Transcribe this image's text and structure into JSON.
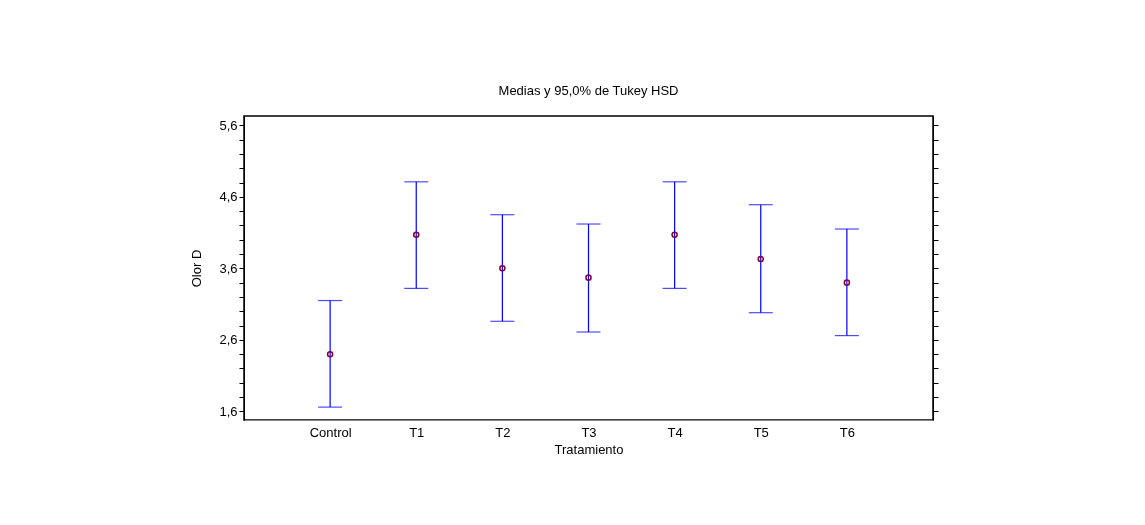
{
  "chart_data": {
    "type": "scatter",
    "title": "Medias y 95,0% de Tukey HSD",
    "xlabel": "Tratamiento",
    "ylabel": "Olor D",
    "categories": [
      "Control",
      "T1",
      "T2",
      "T3",
      "T4",
      "T5",
      "T6"
    ],
    "series": [
      {
        "color": "#800040",
        "values": [
          2.4,
          4.07,
          3.6,
          3.47,
          4.07,
          3.73,
          3.4
        ],
        "errors": [
          [
            1.66,
            3.15
          ],
          [
            3.32,
            4.81
          ],
          [
            2.86,
            4.35
          ],
          [
            2.71,
            4.22
          ],
          [
            3.32,
            4.81
          ],
          [
            2.98,
            4.49
          ],
          [
            2.66,
            4.15
          ]
        ]
      }
    ],
    "ylim": [
      1.48,
      5.73
    ],
    "yticks": [
      {
        "value": 1.6,
        "label": "1,6"
      },
      {
        "value": 1.8,
        "label": null
      },
      {
        "value": 2.0,
        "label": null
      },
      {
        "value": 2.2,
        "label": null
      },
      {
        "value": 2.4,
        "label": null
      },
      {
        "value": 2.6,
        "label": "2,6"
      },
      {
        "value": 2.8,
        "label": null
      },
      {
        "value": 3.0,
        "label": null
      },
      {
        "value": 3.2,
        "label": null
      },
      {
        "value": 3.4,
        "label": null
      },
      {
        "value": 3.6,
        "label": "3,6"
      },
      {
        "value": 3.8,
        "label": null
      },
      {
        "value": 4.0,
        "label": null
      },
      {
        "value": 4.2,
        "label": null
      },
      {
        "value": 4.4,
        "label": null
      },
      {
        "value": 4.6,
        "label": "4,6"
      },
      {
        "value": 4.8,
        "label": null
      },
      {
        "value": 5.0,
        "label": null
      },
      {
        "value": 5.2,
        "label": null
      },
      {
        "value": 5.4,
        "label": null
      },
      {
        "value": 5.6,
        "label": "5,6"
      }
    ],
    "marker": "circle",
    "grid": false
  }
}
